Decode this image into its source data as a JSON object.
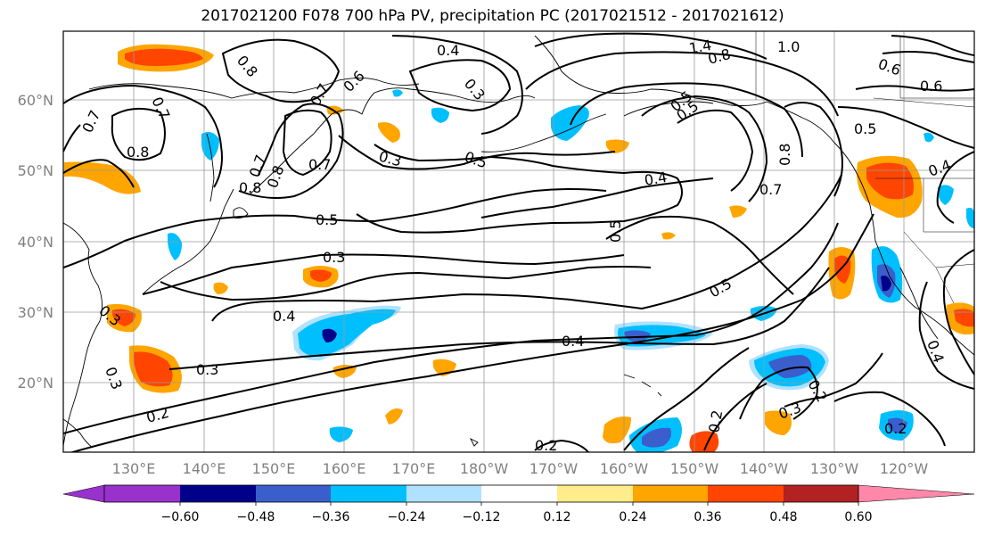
{
  "title": "2017021200 F078 700 hPa PV, precipitation PC (2017021512 - 2017021612)",
  "lat_labels": [
    "60°N",
    "50°N",
    "40°N",
    "30°N",
    "20°N"
  ],
  "lon_labels": [
    "130°E",
    "140°E",
    "150°E",
    "160°E",
    "170°E",
    "180°W",
    "170°W",
    "160°W",
    "150°W",
    "140°W",
    "130°W",
    "120°W"
  ],
  "colorbar": {
    "tick_labels": [
      "−0.60",
      "−0.48",
      "−0.36",
      "−0.24",
      "−0.12",
      "0.12",
      "0.24",
      "0.36",
      "0.48",
      "0.60"
    ],
    "colors": [
      "#9932CC",
      "#00008B",
      "#3A5FCD",
      "#00BFFF",
      "#B0E2FF",
      "#FFFFFF",
      "#FFEC8B",
      "#FFA500",
      "#FF4500",
      "#B22222",
      "#FF88AA"
    ]
  },
  "contour_labels": [
    {
      "text": "0.8"
    },
    {
      "text": "0.7"
    },
    {
      "text": "0.6"
    },
    {
      "text": "0.4"
    },
    {
      "text": "0.3"
    },
    {
      "text": "1.4"
    },
    {
      "text": "1.0"
    },
    {
      "text": "0.8"
    },
    {
      "text": "0.6"
    },
    {
      "text": "0.7"
    },
    {
      "text": "0.8"
    },
    {
      "text": "0.7"
    },
    {
      "text": "0.8"
    },
    {
      "text": "0.8"
    },
    {
      "text": "0.7"
    },
    {
      "text": "0.7"
    },
    {
      "text": "0.5"
    },
    {
      "text": "0.3"
    },
    {
      "text": "0.5"
    },
    {
      "text": "0.4"
    },
    {
      "text": "0.5"
    },
    {
      "text": "0.7"
    },
    {
      "text": "0.8"
    },
    {
      "text": "0.5"
    },
    {
      "text": "0.4"
    },
    {
      "text": "0.3"
    },
    {
      "text": "0.4"
    },
    {
      "text": "0.3"
    },
    {
      "text": "0.3"
    },
    {
      "text": "0.3"
    },
    {
      "text": "0.2"
    },
    {
      "text": "0.4"
    },
    {
      "text": "0.5"
    },
    {
      "text": "0.5"
    },
    {
      "text": "0.3"
    },
    {
      "text": "0.2"
    },
    {
      "text": "0.2"
    },
    {
      "text": "0.2"
    },
    {
      "text": "0.2"
    },
    {
      "text": "0.4"
    },
    {
      "text": "0.5"
    },
    {
      "text": "0.6"
    }
  ]
}
